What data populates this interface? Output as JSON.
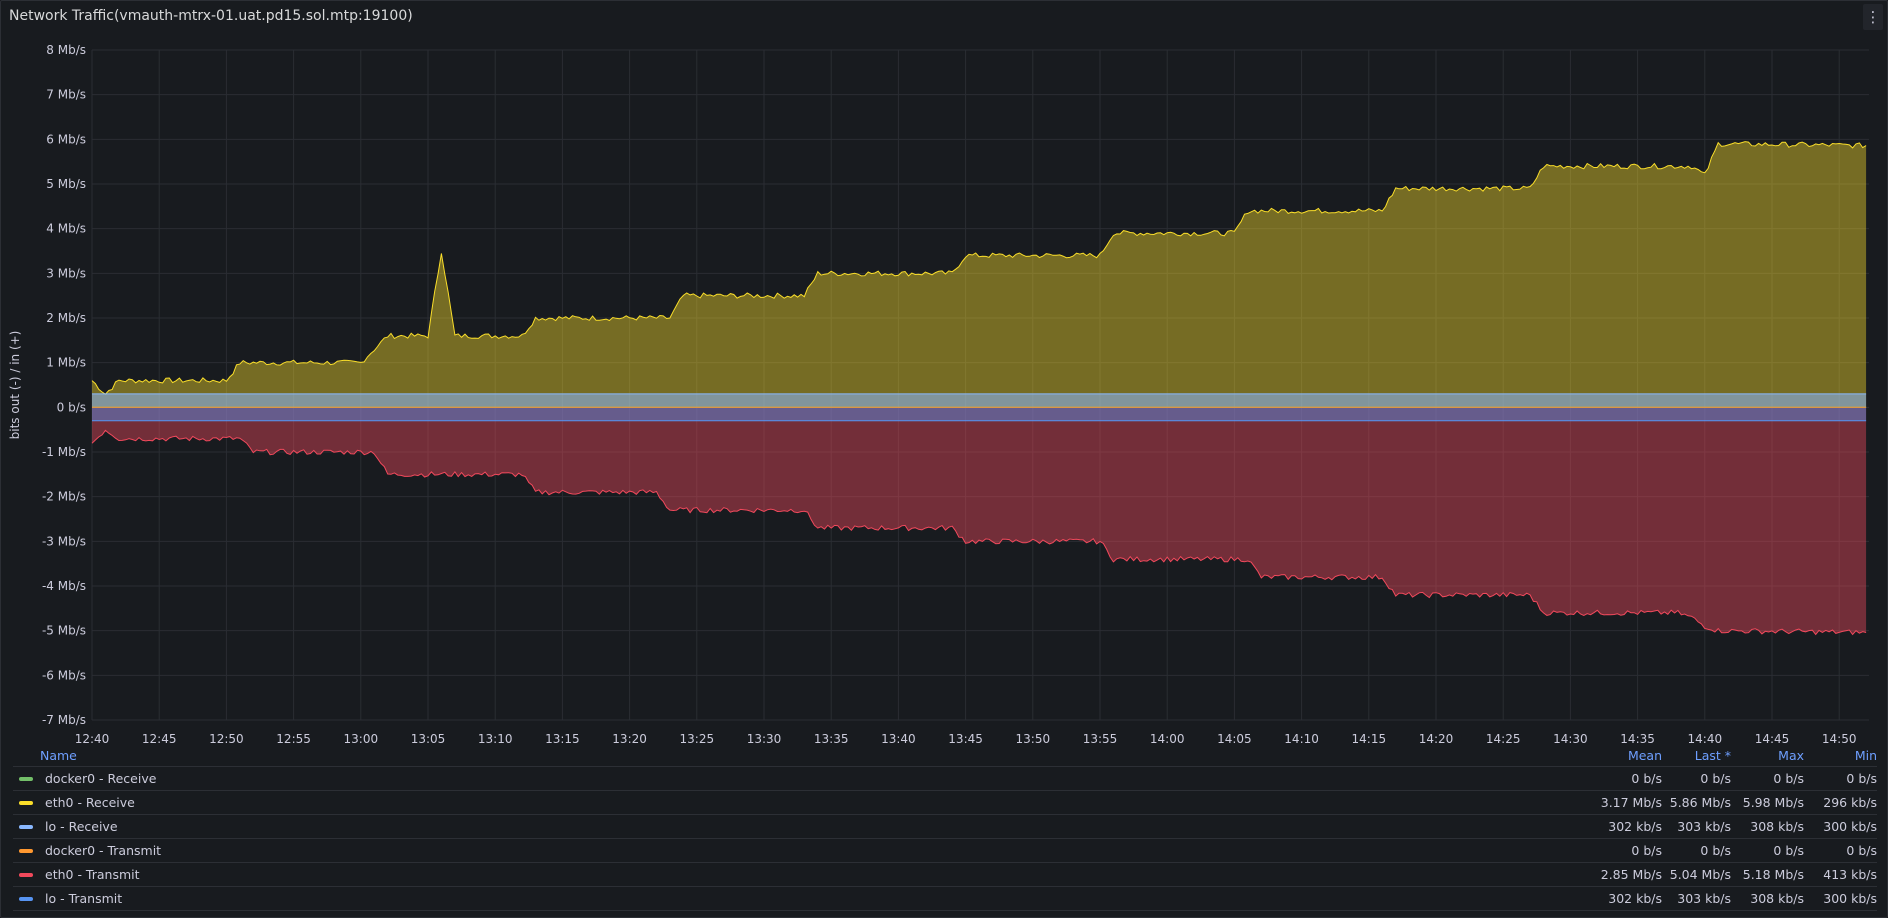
{
  "panel": {
    "title": "Network Traffic(vmauth-mtrx-01.uat.pd15.sol.mtp:19100)",
    "menu_icon": "kebab-vertical-icon"
  },
  "chart_data": {
    "type": "area",
    "ylabel": "bits out (-) / in (+)",
    "y_ticks": [
      "8 Mb/s",
      "7 Mb/s",
      "6 Mb/s",
      "5 Mb/s",
      "4 Mb/s",
      "3 Mb/s",
      "2 Mb/s",
      "1 Mb/s",
      "0 b/s",
      "-1 Mb/s",
      "-2 Mb/s",
      "-3 Mb/s",
      "-4 Mb/s",
      "-5 Mb/s",
      "-6 Mb/s",
      "-7 Mb/s"
    ],
    "ylim": [
      -7,
      8
    ],
    "y_unit": "Mb/s",
    "x_ticks": [
      "12:40",
      "12:45",
      "12:50",
      "12:55",
      "13:00",
      "13:05",
      "13:10",
      "13:15",
      "13:20",
      "13:25",
      "13:30",
      "13:35",
      "13:40",
      "13:45",
      "13:50",
      "13:55",
      "14:00",
      "14:05",
      "14:10",
      "14:15",
      "14:20",
      "14:25",
      "14:30",
      "14:35",
      "14:40",
      "14:45",
      "14:50"
    ],
    "grid": true,
    "series": [
      {
        "name": "docker0 - Receive",
        "color": "#73bf69",
        "x": [
          "12:40",
          "14:52"
        ],
        "y": [
          0,
          0
        ]
      },
      {
        "name": "eth0 - Receive",
        "color": "#fade2a",
        "x": [
          "12:40",
          "12:41",
          "12:42",
          "12:50",
          "12:51",
          "13:00",
          "13:02",
          "13:05",
          "13:06",
          "13:07",
          "13:12",
          "13:13",
          "13:23",
          "13:24",
          "13:33",
          "13:34",
          "13:44",
          "13:45",
          "13:55",
          "13:56",
          "14:05",
          "14:06",
          "14:16",
          "14:17",
          "14:27",
          "14:28",
          "14:38",
          "14:39",
          "14:40",
          "14:41",
          "14:52"
        ],
        "y": [
          0.6,
          0.3,
          0.6,
          0.6,
          1.0,
          1.0,
          1.6,
          1.6,
          3.5,
          1.6,
          1.6,
          2.0,
          2.0,
          2.5,
          2.5,
          3.0,
          3.0,
          3.4,
          3.4,
          3.9,
          3.9,
          4.4,
          4.4,
          4.9,
          4.9,
          5.4,
          5.4,
          5.4,
          5.2,
          5.9,
          5.86
        ]
      },
      {
        "name": "lo - Receive",
        "color": "#8ab8ff",
        "x": [
          "12:40",
          "14:52"
        ],
        "y": [
          0.3,
          0.3
        ]
      },
      {
        "name": "docker0 - Transmit",
        "color": "#ff9830",
        "x": [
          "12:40",
          "14:52"
        ],
        "y": [
          0,
          0
        ]
      },
      {
        "name": "eth0 - Transmit",
        "color": "#f2495c",
        "x": [
          "12:40",
          "12:41",
          "12:42",
          "12:51",
          "12:52",
          "13:01",
          "13:02",
          "13:12",
          "13:13",
          "13:22",
          "13:23",
          "13:33",
          "13:34",
          "13:44",
          "13:45",
          "13:55",
          "13:56",
          "14:06",
          "14:07",
          "14:16",
          "14:17",
          "14:27",
          "14:28",
          "14:38",
          "14:39",
          "14:40",
          "14:41",
          "14:52"
        ],
        "y": [
          -0.8,
          -0.5,
          -0.7,
          -0.7,
          -1.0,
          -1.0,
          -1.5,
          -1.5,
          -1.9,
          -1.9,
          -2.3,
          -2.3,
          -2.7,
          -2.7,
          -3.0,
          -3.0,
          -3.4,
          -3.4,
          -3.8,
          -3.8,
          -4.2,
          -4.2,
          -4.6,
          -4.6,
          -4.7,
          -4.9,
          -5.0,
          -5.04
        ]
      },
      {
        "name": "lo - Transmit",
        "color": "#5794f2",
        "x": [
          "12:40",
          "14:52"
        ],
        "y": [
          -0.3,
          -0.3
        ]
      }
    ]
  },
  "legend": {
    "headers": {
      "name": "Name",
      "mean": "Mean",
      "last": "Last *",
      "max": "Max",
      "min": "Min"
    },
    "rows": [
      {
        "name": "docker0 - Receive",
        "color": "#73bf69",
        "mean": "0 b/s",
        "last": "0 b/s",
        "max": "0 b/s",
        "min": "0 b/s"
      },
      {
        "name": "eth0 - Receive",
        "color": "#fade2a",
        "mean": "3.17 Mb/s",
        "last": "5.86 Mb/s",
        "max": "5.98 Mb/s",
        "min": "296 kb/s"
      },
      {
        "name": "lo - Receive",
        "color": "#8ab8ff",
        "mean": "302 kb/s",
        "last": "303 kb/s",
        "max": "308 kb/s",
        "min": "300 kb/s"
      },
      {
        "name": "docker0 - Transmit",
        "color": "#ff9830",
        "mean": "0 b/s",
        "last": "0 b/s",
        "max": "0 b/s",
        "min": "0 b/s"
      },
      {
        "name": "eth0 - Transmit",
        "color": "#f2495c",
        "mean": "2.85 Mb/s",
        "last": "5.04 Mb/s",
        "max": "5.18 Mb/s",
        "min": "413 kb/s"
      },
      {
        "name": "lo - Transmit",
        "color": "#5794f2",
        "mean": "302 kb/s",
        "last": "303 kb/s",
        "max": "308 kb/s",
        "min": "300 kb/s"
      }
    ]
  }
}
